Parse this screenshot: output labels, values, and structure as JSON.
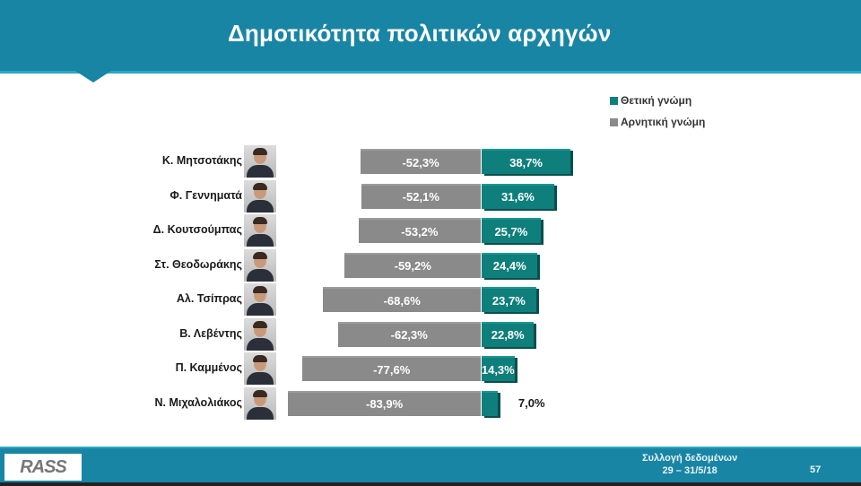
{
  "header": {
    "title": "Δημοτικότητα πολιτικών αρχηγών"
  },
  "legend": [
    {
      "label": "Θετική γνώμη",
      "color": "#0f7f7c"
    },
    {
      "label": "Αρνητική γνώμη",
      "color": "#8a8a8a"
    }
  ],
  "rows": [
    {
      "name": "Κ. Μητσοτάκης",
      "negative_label": "-52,3%",
      "positive_label": "38,7%"
    },
    {
      "name": "Φ. Γεννηματά",
      "negative_label": "-52,1%",
      "positive_label": "31,6%"
    },
    {
      "name": "Δ. Κουτσούμπας",
      "negative_label": "-53,2%",
      "positive_label": "25,7%"
    },
    {
      "name": "Στ. Θεοδωράκης",
      "negative_label": "-59,2%",
      "positive_label": "24,4%"
    },
    {
      "name": "Αλ. Τσίπρας",
      "negative_label": "-68,6%",
      "positive_label": "23,7%"
    },
    {
      "name": "Β. Λεβέντης",
      "negative_label": "-62,3%",
      "positive_label": "22,8%"
    },
    {
      "name": "Π. Καμμένος",
      "negative_label": "-77,6%",
      "positive_label": "14,3%"
    },
    {
      "name": "Ν. Μιχαλολιάκος",
      "negative_label": "-83,9%",
      "positive_label": "7,0%"
    }
  ],
  "footer": {
    "logo": "RASS",
    "collection_label": "Συλλογή δεδομένων",
    "collection_dates": "29 – 31/5/18",
    "page_number": "57"
  },
  "chart_data": {
    "type": "bar",
    "orientation": "horizontal",
    "stacked": "diverging",
    "title": "Δημοτικότητα πολιτικών αρχηγών",
    "categories": [
      "Κ. Μητσοτάκης",
      "Φ. Γεννηματά",
      "Δ. Κουτσούμπας",
      "Στ. Θεοδωράκης",
      "Αλ. Τσίπρας",
      "Β. Λεβέντης",
      "Π. Καμμένος",
      "Ν. Μιχαλολιάκος"
    ],
    "series": [
      {
        "name": "Θετική γνώμη",
        "color": "#0f7f7c",
        "values": [
          38.7,
          31.6,
          25.7,
          24.4,
          23.7,
          22.8,
          14.3,
          7.0
        ]
      },
      {
        "name": "Αρνητική γνώμη",
        "color": "#8a8a8a",
        "values": [
          -52.3,
          -52.1,
          -53.2,
          -59.2,
          -68.6,
          -62.3,
          -77.6,
          -83.9
        ]
      }
    ],
    "xlabel": "",
    "ylabel": "",
    "grid": false,
    "legend_position": "top-right",
    "value_format": "percent, comma decimal"
  }
}
